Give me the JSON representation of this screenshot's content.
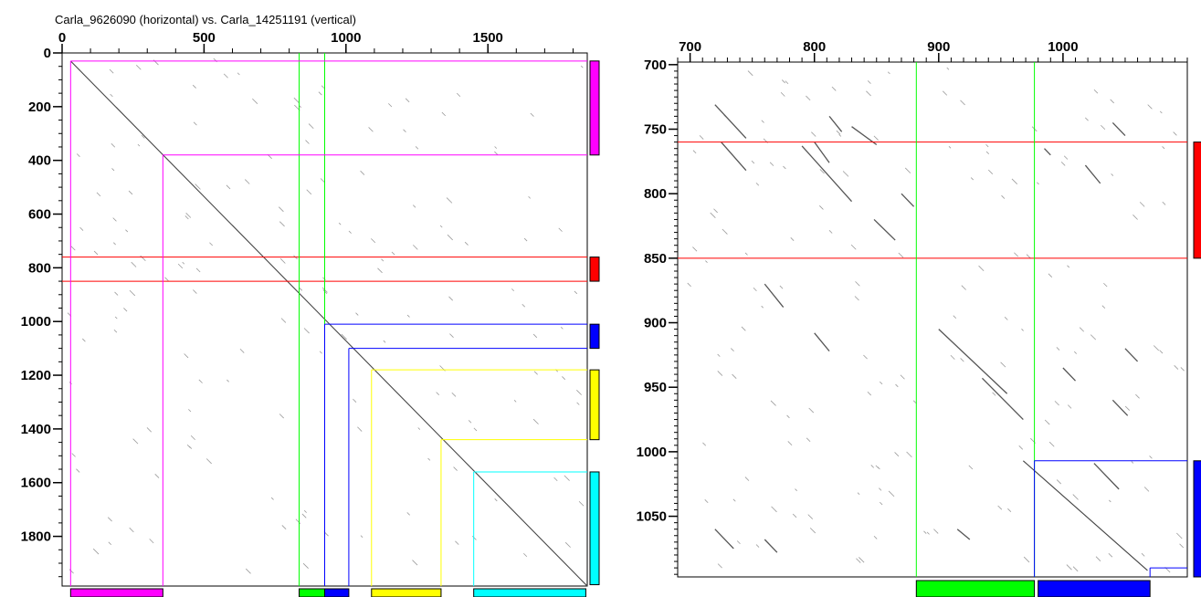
{
  "colors": {
    "magenta": "#ff00ff",
    "red": "#ff0000",
    "blue": "#0000ff",
    "yellow": "#ffff00",
    "cyan": "#00ffff",
    "green": "#00ff00",
    "dot": "#000000"
  },
  "chart_data": [
    {
      "type": "scatter",
      "title": "Carla_9626090 (horizontal) vs. Carla_14251191 (vertical)",
      "x_ticks": [
        "0",
        "500",
        "1000",
        "1500"
      ],
      "y_ticks": [
        "0",
        "200",
        "400",
        "600",
        "800",
        "1000",
        "1200",
        "1400",
        "1600",
        "1800"
      ],
      "xlim": [
        0,
        1850
      ],
      "ylim": [
        0,
        1985
      ],
      "grid": false,
      "main_diagonal": [
        [
          30,
          30
        ],
        [
          1850,
          1985
        ]
      ],
      "vertical_regions": [
        {
          "color": "magenta",
          "y": [
            30,
            380
          ]
        },
        {
          "color": "red",
          "y": [
            760,
            850
          ]
        },
        {
          "color": "blue",
          "y": [
            1010,
            1100
          ]
        },
        {
          "color": "yellow",
          "y": [
            1180,
            1440
          ]
        },
        {
          "color": "cyan",
          "y": [
            1560,
            1980
          ]
        }
      ],
      "horizontal_regions": [
        {
          "color": "magenta",
          "x": [
            30,
            355
          ]
        },
        {
          "color": "green",
          "x": [
            835,
            925
          ]
        },
        {
          "color": "blue",
          "x": [
            925,
            1010
          ]
        },
        {
          "color": "yellow",
          "x": [
            1090,
            1335
          ]
        },
        {
          "color": "cyan",
          "x": [
            1450,
            1845
          ]
        }
      ],
      "red_lines_y": [
        760,
        850
      ],
      "green_lines_x": [
        835,
        925
      ],
      "boxes": [
        {
          "color": "magenta",
          "x_start": 30,
          "y_start": 30
        },
        {
          "color": "magenta",
          "x_start": 355,
          "y_start": 380
        },
        {
          "color": "blue",
          "x_start": 925,
          "y_start": 1010
        },
        {
          "color": "blue",
          "x_start": 1010,
          "y_start": 1100
        },
        {
          "color": "yellow",
          "x_start": 1090,
          "y_start": 1180
        },
        {
          "color": "yellow",
          "x_start": 1335,
          "y_start": 1440
        },
        {
          "color": "cyan",
          "x_start": 1450,
          "y_start": 1560
        }
      ]
    },
    {
      "type": "scatter",
      "title": "",
      "x_ticks": [
        "700",
        "800",
        "900",
        "1000"
      ],
      "y_ticks": [
        "700",
        "750",
        "800",
        "850",
        "900",
        "950",
        "1000",
        "1050"
      ],
      "xlim": [
        690,
        1100
      ],
      "ylim": [
        698,
        1097
      ],
      "grid": false,
      "main_diagonal": [
        [
          968,
          1007
        ],
        [
          1068,
          1092
        ]
      ],
      "vertical_regions": [
        {
          "color": "red",
          "y": [
            760,
            850
          ]
        },
        {
          "color": "blue",
          "y": [
            1007,
            1097
          ]
        }
      ],
      "horizontal_regions": [
        {
          "color": "green",
          "x": [
            882,
            977
          ]
        },
        {
          "color": "blue",
          "x": [
            980,
            1070
          ]
        }
      ],
      "red_lines_y": [
        760,
        850
      ],
      "green_lines_x": [
        882,
        977
      ],
      "boxes": [
        {
          "color": "blue",
          "x_start": 977,
          "y_start": 1007
        },
        {
          "color": "blue",
          "x_start": 1070,
          "y_start": 1090
        }
      ],
      "segments": [
        [
          [
            720,
            731
          ],
          [
            745,
            757
          ]
        ],
        [
          [
            725,
            760
          ],
          [
            745,
            782
          ]
        ],
        [
          [
            790,
            763
          ],
          [
            830,
            806
          ]
        ],
        [
          [
            812,
            740
          ],
          [
            822,
            752
          ]
        ],
        [
          [
            830,
            748
          ],
          [
            850,
            762
          ]
        ],
        [
          [
            848,
            820
          ],
          [
            865,
            836
          ]
        ],
        [
          [
            900,
            905
          ],
          [
            955,
            955
          ]
        ],
        [
          [
            935,
            943
          ],
          [
            968,
            975
          ]
        ],
        [
          [
            985,
            765
          ],
          [
            990,
            770
          ]
        ],
        [
          [
            1018,
            778
          ],
          [
            1030,
            792
          ]
        ],
        [
          [
            1025,
            1009
          ],
          [
            1045,
            1029
          ]
        ],
        [
          [
            800,
            760
          ],
          [
            812,
            776
          ]
        ],
        [
          [
            870,
            800
          ],
          [
            880,
            810
          ]
        ],
        [
          [
            760,
            870
          ],
          [
            775,
            888
          ]
        ],
        [
          [
            800,
            908
          ],
          [
            812,
            922
          ]
        ],
        [
          [
            1000,
            935
          ],
          [
            1010,
            945
          ]
        ],
        [
          [
            1040,
            960
          ],
          [
            1052,
            972
          ]
        ],
        [
          [
            1050,
            920
          ],
          [
            1060,
            930
          ]
        ],
        [
          [
            720,
            1060
          ],
          [
            735,
            1075
          ]
        ],
        [
          [
            760,
            1068
          ],
          [
            770,
            1078
          ]
        ],
        [
          [
            915,
            1060
          ],
          [
            925,
            1068
          ]
        ],
        [
          [
            1040,
            745
          ],
          [
            1050,
            755
          ]
        ]
      ]
    }
  ]
}
